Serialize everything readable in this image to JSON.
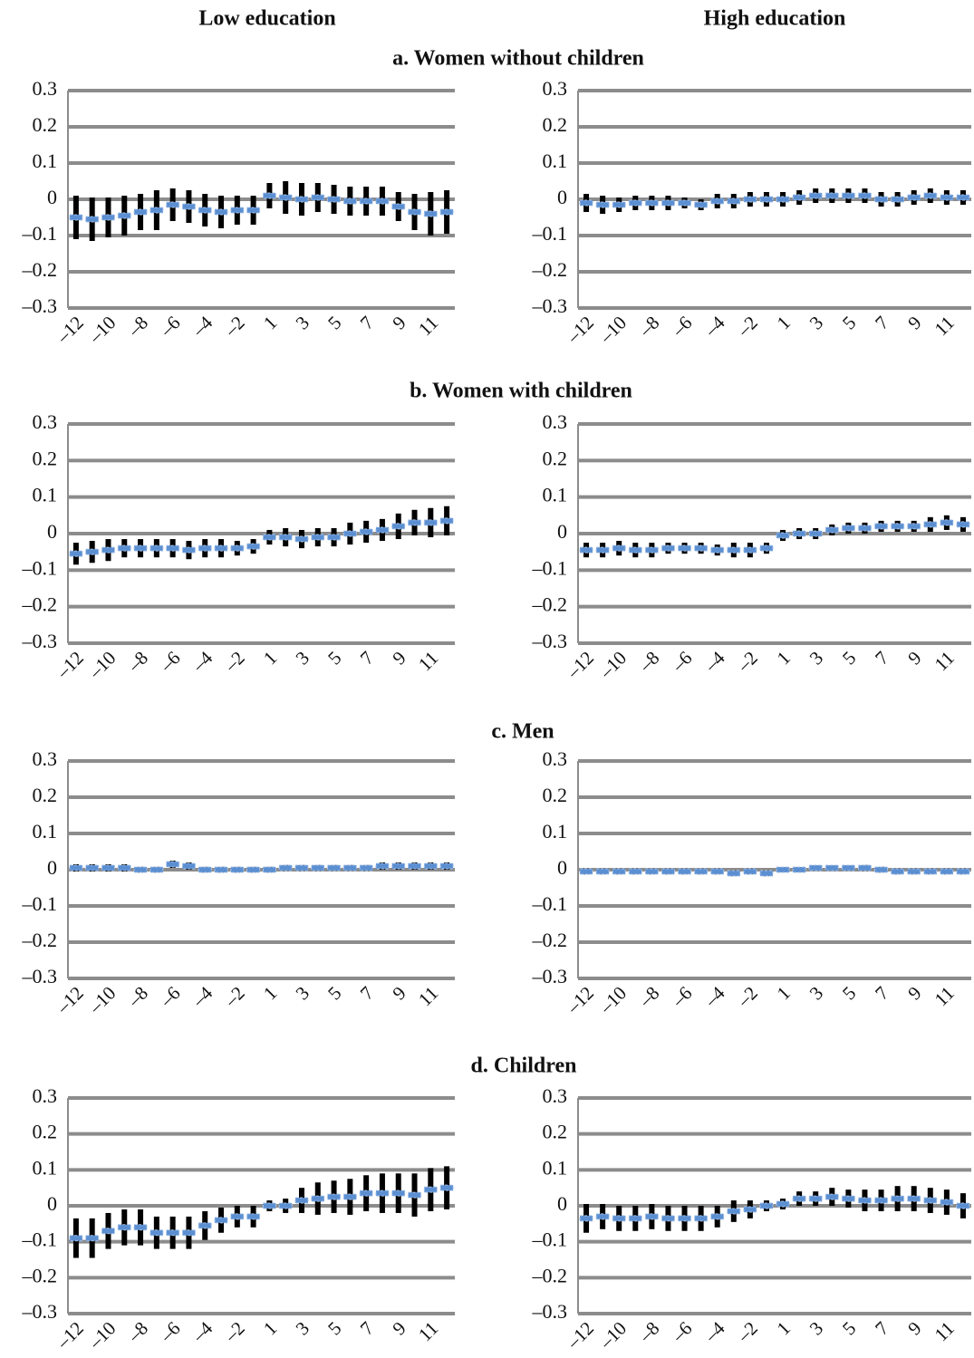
{
  "column_headers": [
    "Low education",
    "High education"
  ],
  "panel_titles": [
    "a. Women without children",
    "b. Women with children",
    "c. Men",
    "d. Children"
  ],
  "chart_data": [
    {
      "type": "errorbar",
      "categories": [
        "–12",
        null,
        "–10",
        null,
        "–8",
        null,
        "–6",
        null,
        "–4",
        null,
        "–2",
        null,
        "1",
        null,
        "3",
        null,
        "5",
        null,
        "7",
        null,
        "9",
        null,
        "11",
        null
      ],
      "values": [
        -0.05,
        -0.055,
        -0.05,
        -0.045,
        -0.035,
        -0.03,
        -0.015,
        -0.02,
        -0.03,
        -0.035,
        -0.03,
        -0.03,
        0.01,
        0.005,
        0,
        0.005,
        0,
        -0.005,
        -0.005,
        -0.005,
        -0.02,
        -0.035,
        -0.04,
        -0.035
      ],
      "errors": [
        0.06,
        0.06,
        0.055,
        0.055,
        0.05,
        0.055,
        0.045,
        0.045,
        0.045,
        0.045,
        0.04,
        0.04,
        0.035,
        0.045,
        0.045,
        0.04,
        0.04,
        0.04,
        0.04,
        0.04,
        0.04,
        0.05,
        0.06,
        0.06
      ],
      "color": "#5b8fd1",
      "error_color": "#000000",
      "grid": true,
      "ylim": [
        -0.3,
        0.3
      ],
      "yticks": [
        0.3,
        0.2,
        0.1,
        0,
        {
          "value": -0.1,
          "label": "–0.1"
        },
        {
          "value": -0.2,
          "label": "–0.2"
        },
        {
          "value": -0.3,
          "label": "–0.3"
        }
      ]
    },
    {
      "type": "errorbar",
      "categories": [
        "–12",
        null,
        "–10",
        null,
        "–8",
        null,
        "–6",
        null,
        "–4",
        null,
        "–2",
        null,
        "1",
        null,
        "3",
        null,
        "5",
        null,
        "7",
        null,
        "9",
        null,
        "11",
        null
      ],
      "values": [
        -0.01,
        -0.015,
        -0.015,
        -0.01,
        -0.01,
        -0.01,
        -0.01,
        -0.015,
        -0.005,
        -0.005,
        0,
        0,
        0,
        0.005,
        0.01,
        0.01,
        0.01,
        0.01,
        0,
        0,
        0.005,
        0.01,
        0.005,
        0.005
      ],
      "errors": [
        0.025,
        0.025,
        0.02,
        0.02,
        0.02,
        0.02,
        0.015,
        0.015,
        0.02,
        0.02,
        0.02,
        0.02,
        0.02,
        0.02,
        0.02,
        0.02,
        0.02,
        0.02,
        0.02,
        0.02,
        0.02,
        0.02,
        0.02,
        0.02
      ],
      "color": "#5b8fd1",
      "error_color": "#000000",
      "grid": true,
      "ylim": [
        -0.3,
        0.3
      ],
      "yticks": [
        0.3,
        0.2,
        0.1,
        0,
        {
          "value": -0.1,
          "label": "–0.1"
        },
        {
          "value": -0.2,
          "label": "–0.2"
        },
        {
          "value": -0.3,
          "label": "–0.3"
        }
      ]
    },
    {
      "type": "errorbar",
      "categories": [
        "–12",
        null,
        "–10",
        null,
        "–8",
        null,
        "–6",
        null,
        "–4",
        null,
        "–2",
        null,
        "1",
        null,
        "3",
        null,
        "5",
        null,
        "7",
        null,
        "9",
        null,
        "11",
        null
      ],
      "values": [
        -0.055,
        -0.05,
        -0.045,
        -0.04,
        -0.04,
        -0.04,
        -0.04,
        -0.045,
        -0.04,
        -0.04,
        -0.04,
        -0.035,
        -0.01,
        -0.01,
        -0.015,
        -0.01,
        -0.01,
        0,
        0.005,
        0.01,
        0.02,
        0.03,
        0.03,
        0.035
      ],
      "errors": [
        0.03,
        0.03,
        0.03,
        0.025,
        0.025,
        0.025,
        0.025,
        0.025,
        0.025,
        0.025,
        0.02,
        0.02,
        0.02,
        0.025,
        0.025,
        0.025,
        0.025,
        0.03,
        0.03,
        0.03,
        0.035,
        0.035,
        0.04,
        0.04
      ],
      "color": "#5b8fd1",
      "error_color": "#000000",
      "grid": true,
      "ylim": [
        -0.3,
        0.3
      ],
      "yticks": [
        0.3,
        0.2,
        0.1,
        0,
        {
          "value": -0.1,
          "label": "–0.1"
        },
        {
          "value": -0.2,
          "label": "–0.2"
        },
        {
          "value": -0.3,
          "label": "–0.3"
        }
      ]
    },
    {
      "type": "errorbar",
      "categories": [
        "–12",
        null,
        "–10",
        null,
        "–8",
        null,
        "–6",
        null,
        "–4",
        null,
        "–2",
        null,
        "1",
        null,
        "3",
        null,
        "5",
        null,
        "7",
        null,
        "9",
        null,
        "11",
        null
      ],
      "values": [
        -0.045,
        -0.045,
        -0.04,
        -0.045,
        -0.045,
        -0.04,
        -0.04,
        -0.04,
        -0.045,
        -0.045,
        -0.045,
        -0.04,
        -0.005,
        0,
        0,
        0.01,
        0.015,
        0.015,
        0.02,
        0.02,
        0.02,
        0.025,
        0.03,
        0.025
      ],
      "errors": [
        0.02,
        0.02,
        0.02,
        0.02,
        0.02,
        0.015,
        0.015,
        0.015,
        0.015,
        0.02,
        0.02,
        0.015,
        0.015,
        0.015,
        0.015,
        0.015,
        0.015,
        0.015,
        0.015,
        0.015,
        0.015,
        0.02,
        0.02,
        0.02
      ],
      "color": "#5b8fd1",
      "error_color": "#000000",
      "grid": true,
      "ylim": [
        -0.3,
        0.3
      ],
      "yticks": [
        0.3,
        0.2,
        0.1,
        0,
        {
          "value": -0.1,
          "label": "–0.1"
        },
        {
          "value": -0.2,
          "label": "–0.2"
        },
        {
          "value": -0.3,
          "label": "–0.3"
        }
      ]
    },
    {
      "type": "errorbar",
      "categories": [
        "–12",
        null,
        "–10",
        null,
        "–8",
        null,
        "–6",
        null,
        "–4",
        null,
        "–2",
        null,
        "1",
        null,
        "3",
        null,
        "5",
        null,
        "7",
        null,
        "9",
        null,
        "11",
        null
      ],
      "values": [
        0.005,
        0.005,
        0.005,
        0.005,
        0,
        0,
        0.015,
        0.01,
        0,
        0,
        0,
        0,
        0,
        0.005,
        0.005,
        0.005,
        0.005,
        0.005,
        0.005,
        0.01,
        0.01,
        0.01,
        0.01,
        0.01
      ],
      "errors": [
        0.01,
        0.01,
        0.01,
        0.01,
        0.008,
        0.008,
        0.01,
        0.01,
        0.008,
        0.008,
        0.008,
        0.008,
        0.008,
        0.008,
        0.008,
        0.008,
        0.008,
        0.008,
        0.008,
        0.01,
        0.01,
        0.01,
        0.01,
        0.01
      ],
      "color": "#5b8fd1",
      "error_color": "#000000",
      "grid": true,
      "ylim": [
        -0.3,
        0.3
      ],
      "yticks": [
        0.3,
        0.2,
        0.1,
        0,
        {
          "value": -0.1,
          "label": "–0.1"
        },
        {
          "value": -0.2,
          "label": "–0.2"
        },
        {
          "value": -0.3,
          "label": "–0.3"
        }
      ]
    },
    {
      "type": "errorbar",
      "categories": [
        "–12",
        null,
        "–10",
        null,
        "–8",
        null,
        "–6",
        null,
        "–4",
        null,
        "–2",
        null,
        "1",
        null,
        "3",
        null,
        "5",
        null,
        "7",
        null,
        "9",
        null,
        "11",
        null
      ],
      "values": [
        -0.005,
        -0.005,
        -0.005,
        -0.005,
        -0.005,
        -0.005,
        -0.005,
        -0.005,
        -0.005,
        -0.01,
        -0.005,
        -0.01,
        0,
        0,
        0.005,
        0.005,
        0.005,
        0.005,
        0,
        -0.005,
        -0.005,
        -0.005,
        -0.005,
        -0.005
      ],
      "errors": [
        0.008,
        0.008,
        0.008,
        0.008,
        0.008,
        0.008,
        0.008,
        0.008,
        0.008,
        0.008,
        0.008,
        0.008,
        0.006,
        0.006,
        0.006,
        0.006,
        0.006,
        0.008,
        0.008,
        0.008,
        0.008,
        0.008,
        0.008,
        0.008
      ],
      "color": "#5b8fd1",
      "error_color": "#000000",
      "grid": true,
      "ylim": [
        -0.3,
        0.3
      ],
      "yticks": [
        0.3,
        0.2,
        0.1,
        0,
        {
          "value": -0.1,
          "label": "–0.1"
        },
        {
          "value": -0.2,
          "label": "–0.2"
        },
        {
          "value": -0.3,
          "label": "–0.3"
        }
      ]
    },
    {
      "type": "errorbar",
      "categories": [
        "–12",
        null,
        "–10",
        null,
        "–8",
        null,
        "–6",
        null,
        "–4",
        null,
        "–2",
        null,
        "1",
        null,
        "3",
        null,
        "5",
        null,
        "7",
        null,
        "9",
        null,
        "11",
        null
      ],
      "values": [
        -0.09,
        -0.09,
        -0.07,
        -0.06,
        -0.06,
        -0.075,
        -0.075,
        -0.075,
        -0.055,
        -0.04,
        -0.03,
        -0.03,
        0,
        0,
        0.015,
        0.02,
        0.025,
        0.025,
        0.035,
        0.035,
        0.035,
        0.03,
        0.045,
        0.05
      ],
      "errors": [
        0.055,
        0.055,
        0.05,
        0.05,
        0.05,
        0.045,
        0.045,
        0.045,
        0.04,
        0.035,
        0.03,
        0.03,
        0.015,
        0.02,
        0.035,
        0.045,
        0.045,
        0.05,
        0.05,
        0.055,
        0.055,
        0.06,
        0.06,
        0.06
      ],
      "color": "#5b8fd1",
      "error_color": "#000000",
      "grid": true,
      "ylim": [
        -0.3,
        0.3
      ],
      "yticks": [
        0.3,
        0.2,
        0.1,
        0,
        {
          "value": -0.1,
          "label": "–0.1"
        },
        {
          "value": -0.2,
          "label": "–0.2"
        },
        {
          "value": -0.3,
          "label": "–0.3"
        }
      ]
    },
    {
      "type": "errorbar",
      "categories": [
        "–12",
        null,
        "–10",
        null,
        "–8",
        null,
        "–6",
        null,
        "–4",
        null,
        "–2",
        null,
        "1",
        null,
        "3",
        null,
        "5",
        null,
        "7",
        null,
        "9",
        null,
        "11",
        null
      ],
      "values": [
        -0.035,
        -0.03,
        -0.035,
        -0.035,
        -0.03,
        -0.035,
        -0.035,
        -0.035,
        -0.03,
        -0.015,
        -0.01,
        0,
        0.005,
        0.02,
        0.02,
        0.025,
        0.02,
        0.015,
        0.015,
        0.02,
        0.02,
        0.015,
        0.01,
        0
      ],
      "errors": [
        0.04,
        0.035,
        0.035,
        0.035,
        0.035,
        0.035,
        0.035,
        0.035,
        0.03,
        0.03,
        0.025,
        0.015,
        0.015,
        0.02,
        0.02,
        0.025,
        0.025,
        0.03,
        0.03,
        0.035,
        0.035,
        0.035,
        0.035,
        0.035
      ],
      "color": "#5b8fd1",
      "error_color": "#000000",
      "grid": true,
      "ylim": [
        -0.3,
        0.3
      ],
      "yticks": [
        0.3,
        0.2,
        0.1,
        0,
        {
          "value": -0.1,
          "label": "–0.1"
        },
        {
          "value": -0.2,
          "label": "–0.2"
        },
        {
          "value": -0.3,
          "label": "–0.3"
        }
      ]
    }
  ]
}
